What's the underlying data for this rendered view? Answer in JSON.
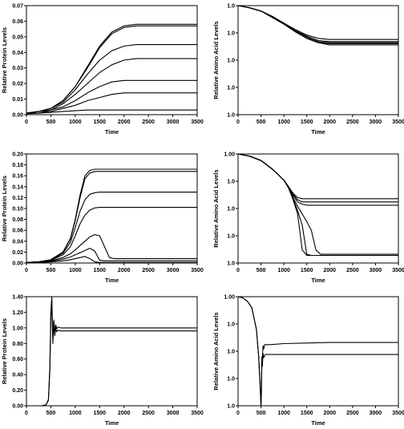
{
  "chart_data": [
    {
      "type": "line",
      "xlabel": "Time",
      "ylabel": "Relative Protein Levels",
      "xlim": [
        0,
        3500
      ],
      "ylim": [
        0,
        0.07
      ],
      "x_ticks": [
        "0",
        "500",
        "1000",
        "1500",
        "2000",
        "2500",
        "3000",
        "3500"
      ],
      "y_ticks": [
        "0.00",
        "0.01",
        "0.02",
        "0.03",
        "0.04",
        "0.05",
        "0.06",
        "0.07"
      ],
      "x": [
        0,
        250,
        500,
        750,
        1000,
        1250,
        1500,
        1750,
        2000,
        2250,
        2500,
        2750,
        3000,
        3250,
        3500
      ],
      "series": [
        {
          "values": [
            0.001,
            0.002,
            0.004,
            0.009,
            0.018,
            0.031,
            0.044,
            0.053,
            0.057,
            0.058,
            0.058,
            0.058,
            0.058,
            0.058,
            0.058
          ]
        },
        {
          "values": [
            0.001,
            0.002,
            0.004,
            0.009,
            0.018,
            0.03,
            0.043,
            0.052,
            0.056,
            0.057,
            0.057,
            0.057,
            0.057,
            0.057,
            0.057
          ]
        },
        {
          "values": [
            0.001,
            0.002,
            0.004,
            0.008,
            0.016,
            0.026,
            0.035,
            0.041,
            0.044,
            0.045,
            0.045,
            0.045,
            0.045,
            0.045,
            0.045
          ]
        },
        {
          "values": [
            0.001,
            0.002,
            0.003,
            0.007,
            0.013,
            0.02,
            0.027,
            0.032,
            0.035,
            0.036,
            0.036,
            0.036,
            0.036,
            0.036,
            0.036
          ]
        },
        {
          "values": [
            0.001,
            0.001,
            0.003,
            0.005,
            0.009,
            0.014,
            0.018,
            0.021,
            0.022,
            0.022,
            0.022,
            0.022,
            0.022,
            0.022,
            0.022
          ]
        },
        {
          "values": [
            0.001,
            0.001,
            0.002,
            0.004,
            0.006,
            0.009,
            0.011,
            0.013,
            0.014,
            0.014,
            0.014,
            0.014,
            0.014,
            0.014,
            0.014
          ]
        },
        {
          "values": [
            0.0005,
            0.001,
            0.0015,
            0.002,
            0.0025,
            0.003,
            0.003,
            0.003,
            0.003,
            0.003,
            0.003,
            0.003,
            0.003,
            0.003,
            0.003
          ]
        }
      ]
    },
    {
      "type": "line",
      "xlabel": "Time",
      "ylabel": "Relative Amino Acid Levels",
      "xlim": [
        0,
        3500
      ],
      "ylim": [
        0,
        1
      ],
      "x_ticks": [
        "0",
        "500",
        "1000",
        "1500",
        "2000",
        "2500",
        "3000",
        "3500"
      ],
      "y_ticks": [
        "1.0",
        "1.0",
        "1.0",
        "1.0",
        "1.0"
      ],
      "x": [
        0,
        250,
        500,
        750,
        1000,
        1250,
        1500,
        1750,
        2000,
        2250,
        2500,
        2750,
        3000,
        3250,
        3500
      ],
      "series": [
        {
          "values": [
            1.0,
            0.98,
            0.95,
            0.9,
            0.84,
            0.78,
            0.73,
            0.7,
            0.69,
            0.69,
            0.69,
            0.69,
            0.69,
            0.69,
            0.69
          ]
        },
        {
          "values": [
            1.0,
            0.98,
            0.95,
            0.9,
            0.84,
            0.77,
            0.72,
            0.68,
            0.67,
            0.67,
            0.67,
            0.67,
            0.67,
            0.67,
            0.67
          ]
        },
        {
          "values": [
            1.0,
            0.98,
            0.95,
            0.9,
            0.84,
            0.77,
            0.71,
            0.67,
            0.66,
            0.66,
            0.66,
            0.66,
            0.66,
            0.66,
            0.66
          ]
        },
        {
          "values": [
            1.0,
            0.98,
            0.95,
            0.9,
            0.83,
            0.76,
            0.7,
            0.66,
            0.65,
            0.65,
            0.65,
            0.65,
            0.65,
            0.65,
            0.65
          ]
        },
        {
          "values": [
            1.0,
            0.98,
            0.95,
            0.89,
            0.83,
            0.76,
            0.7,
            0.66,
            0.64,
            0.64,
            0.64,
            0.64,
            0.64,
            0.64,
            0.64
          ]
        }
      ]
    },
    {
      "type": "line",
      "xlabel": "Time",
      "ylabel": "Relative Protein Levels",
      "xlim": [
        0,
        3500
      ],
      "ylim": [
        0,
        0.2
      ],
      "x_ticks": [
        "0",
        "500",
        "1000",
        "1500",
        "2000",
        "2500",
        "3000",
        "3500"
      ],
      "y_ticks": [
        "0.00",
        "0.02",
        "0.04",
        "0.06",
        "0.08",
        "0.10",
        "0.12",
        "0.14",
        "0.16",
        "0.18",
        "0.20"
      ],
      "x": [
        0,
        250,
        500,
        750,
        900,
        1000,
        1100,
        1200,
        1300,
        1400,
        1500,
        1600,
        1700,
        1800,
        2000,
        2500,
        3000,
        3500
      ],
      "series": [
        {
          "values": [
            0.001,
            0.002,
            0.006,
            0.02,
            0.045,
            0.08,
            0.125,
            0.16,
            0.17,
            0.172,
            0.172,
            0.172,
            0.172,
            0.172,
            0.172,
            0.172,
            0.172,
            0.172
          ]
        },
        {
          "values": [
            0.001,
            0.002,
            0.006,
            0.02,
            0.044,
            0.078,
            0.12,
            0.155,
            0.165,
            0.168,
            0.168,
            0.168,
            0.168,
            0.168,
            0.168,
            0.168,
            0.168,
            0.168
          ]
        },
        {
          "values": [
            0.001,
            0.002,
            0.005,
            0.018,
            0.038,
            0.065,
            0.095,
            0.116,
            0.126,
            0.129,
            0.13,
            0.13,
            0.13,
            0.13,
            0.13,
            0.13,
            0.13,
            0.13
          ]
        },
        {
          "values": [
            0.001,
            0.002,
            0.005,
            0.015,
            0.03,
            0.05,
            0.072,
            0.088,
            0.097,
            0.101,
            0.102,
            0.102,
            0.102,
            0.102,
            0.102,
            0.102,
            0.102,
            0.102
          ]
        },
        {
          "values": [
            0.001,
            0.002,
            0.004,
            0.01,
            0.017,
            0.024,
            0.032,
            0.04,
            0.048,
            0.052,
            0.05,
            0.03,
            0.01,
            0.008,
            0.008,
            0.008,
            0.008,
            0.008
          ]
        },
        {
          "values": [
            0.001,
            0.001,
            0.003,
            0.007,
            0.011,
            0.015,
            0.019,
            0.023,
            0.027,
            0.022,
            0.005,
            0.004,
            0.004,
            0.004,
            0.004,
            0.004,
            0.004,
            0.004
          ]
        },
        {
          "values": [
            0.0005,
            0.001,
            0.002,
            0.004,
            0.006,
            0.008,
            0.01,
            0.012,
            0.008,
            0.002,
            0.001,
            0.001,
            0.001,
            0.001,
            0.001,
            0.001,
            0.001,
            0.001
          ]
        }
      ]
    },
    {
      "type": "line",
      "xlabel": "Time",
      "ylabel": "Relative Amino Acid Levels",
      "xlim": [
        0,
        3500
      ],
      "ylim": [
        0,
        1
      ],
      "x_ticks": [
        "0",
        "500",
        "1000",
        "1500",
        "2000",
        "2500",
        "3000",
        "3500"
      ],
      "y_ticks": [
        "1.0",
        "1.0",
        "1.0",
        "1.0",
        "1.00"
      ],
      "x": [
        0,
        250,
        500,
        750,
        1000,
        1100,
        1200,
        1300,
        1400,
        1500,
        1600,
        1700,
        1800,
        2000,
        2500,
        3000,
        3500
      ],
      "series": [
        {
          "values": [
            1.0,
            0.98,
            0.94,
            0.86,
            0.76,
            0.7,
            0.64,
            0.6,
            0.59,
            0.59,
            0.59,
            0.59,
            0.59,
            0.59,
            0.59,
            0.59,
            0.59
          ]
        },
        {
          "values": [
            1.0,
            0.98,
            0.94,
            0.86,
            0.76,
            0.7,
            0.63,
            0.58,
            0.56,
            0.56,
            0.56,
            0.56,
            0.56,
            0.56,
            0.56,
            0.56,
            0.56
          ]
        },
        {
          "values": [
            1.0,
            0.98,
            0.94,
            0.86,
            0.76,
            0.7,
            0.62,
            0.56,
            0.54,
            0.53,
            0.53,
            0.53,
            0.53,
            0.53,
            0.53,
            0.53,
            0.53
          ]
        },
        {
          "values": [
            1.0,
            0.98,
            0.94,
            0.86,
            0.76,
            0.69,
            0.6,
            0.52,
            0.45,
            0.38,
            0.3,
            0.12,
            0.08,
            0.08,
            0.08,
            0.08,
            0.08
          ]
        },
        {
          "values": [
            1.0,
            0.98,
            0.94,
            0.86,
            0.76,
            0.69,
            0.59,
            0.48,
            0.35,
            0.08,
            0.07,
            0.07,
            0.07,
            0.07,
            0.07,
            0.07,
            0.07
          ]
        },
        {
          "values": [
            1.0,
            0.98,
            0.94,
            0.86,
            0.76,
            0.69,
            0.58,
            0.45,
            0.12,
            0.07,
            0.07,
            0.07,
            0.07,
            0.07,
            0.07,
            0.07,
            0.07
          ]
        }
      ]
    },
    {
      "type": "line",
      "xlabel": "Time",
      "ylabel": "Relative Protein Levels",
      "xlim": [
        0,
        3500
      ],
      "ylim": [
        0,
        1.4
      ],
      "x_ticks": [
        "0",
        "500",
        "1000",
        "1500",
        "2000",
        "2500",
        "3000",
        "3500"
      ],
      "y_ticks": [
        "0.00",
        "0.20",
        "0.40",
        "0.60",
        "0.80",
        "1.00",
        "1.20",
        "1.40"
      ],
      "x": [
        0,
        300,
        400,
        450,
        480,
        500,
        520,
        540,
        560,
        580,
        600,
        620,
        650,
        700,
        800,
        1000,
        2000,
        3000,
        3500
      ],
      "series": [
        {
          "values": [
            0.0,
            0.0,
            0.01,
            0.08,
            0.5,
            1.2,
            1.4,
            0.9,
            1.1,
            0.95,
            1.04,
            0.99,
            1.01,
            1.0,
            1.0,
            1.0,
            1.0,
            1.0,
            1.0
          ]
        },
        {
          "values": [
            0.0,
            0.0,
            0.01,
            0.07,
            0.45,
            1.1,
            1.35,
            0.8,
            1.05,
            0.9,
            1.0,
            0.95,
            0.97,
            0.96,
            0.96,
            0.96,
            0.96,
            0.96,
            0.96
          ]
        }
      ]
    },
    {
      "type": "line",
      "xlabel": "Time",
      "ylabel": "Relative Amino Acid Levels",
      "xlim": [
        0,
        3500
      ],
      "ylim": [
        0,
        1
      ],
      "x_ticks": [
        "0",
        "500",
        "1000",
        "1500",
        "2000",
        "2500",
        "3000",
        "3500"
      ],
      "y_ticks": [
        "1.0",
        "1.0",
        "1.0",
        "1.0",
        "1.00"
      ],
      "x": [
        0,
        100,
        200,
        300,
        400,
        450,
        480,
        500,
        510,
        520,
        530,
        545,
        560,
        580,
        600,
        700,
        1000,
        2000,
        3000,
        3500
      ],
      "series": [
        {
          "values": [
            1.0,
            0.99,
            0.96,
            0.9,
            0.7,
            0.45,
            0.2,
            0.0,
            0.15,
            0.45,
            0.42,
            0.55,
            0.52,
            0.56,
            0.56,
            0.56,
            0.57,
            0.58,
            0.58,
            0.58
          ]
        },
        {
          "values": [
            1.0,
            0.99,
            0.96,
            0.9,
            0.7,
            0.45,
            0.2,
            0.0,
            0.1,
            0.4,
            0.36,
            0.48,
            0.44,
            0.46,
            0.47,
            0.47,
            0.47,
            0.47,
            0.47,
            0.47
          ]
        }
      ]
    }
  ]
}
